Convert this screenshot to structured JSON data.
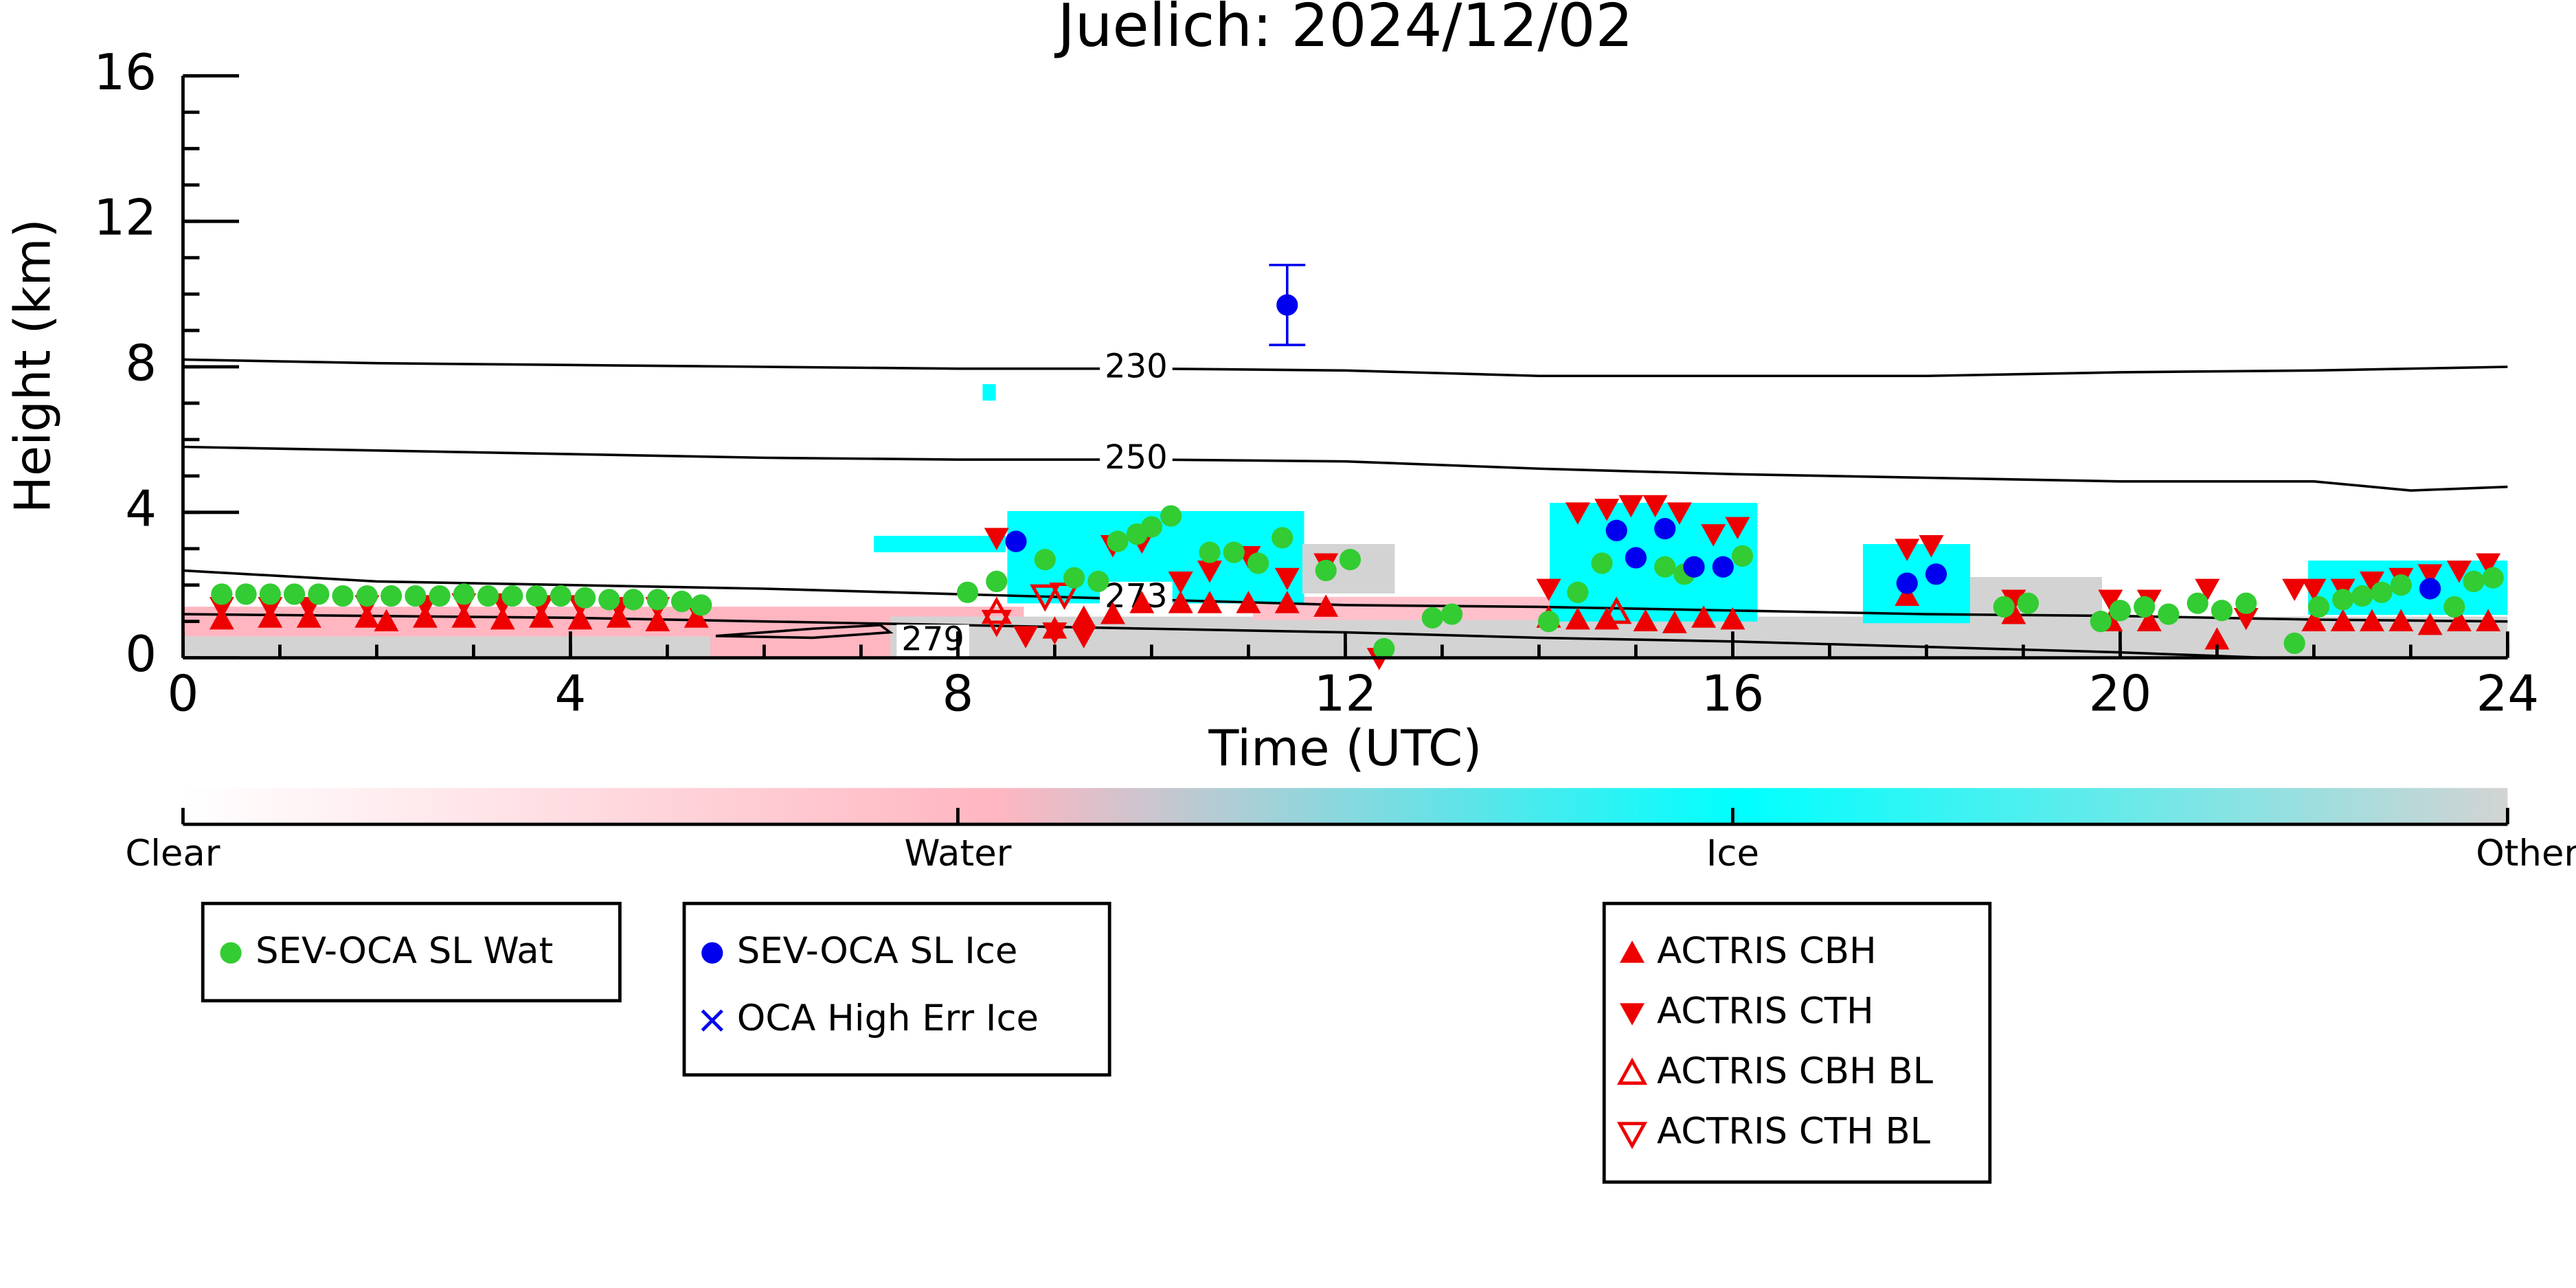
{
  "chart_data": {
    "type": "scatter",
    "title": "Juelich: 2024/12/02",
    "x_label": "Time (UTC)",
    "y_label": "Height (km)",
    "xlim": [
      0,
      24
    ],
    "ylim": [
      0,
      16
    ],
    "xticks": [
      0,
      4,
      8,
      12,
      16,
      20,
      24
    ],
    "yticks": [
      0,
      4,
      8,
      12,
      16
    ],
    "xminorticks": [
      0,
      1,
      2,
      3,
      4,
      5,
      6,
      7,
      8,
      9,
      10,
      11,
      12,
      13,
      14,
      15,
      16,
      17,
      18,
      19,
      20,
      21,
      22,
      23,
      24
    ],
    "yminorticks": [
      0,
      1,
      2,
      3,
      4,
      5,
      6,
      7,
      8,
      9,
      10,
      11,
      12,
      13,
      14,
      15,
      16
    ],
    "series": [
      {
        "name": "SEV-OCA SL Wat",
        "marker": "circle",
        "color": "#33cc33",
        "x": [
          0.4,
          0.65,
          0.9,
          1.15,
          1.4,
          1.65,
          1.9,
          2.15,
          2.4,
          2.65,
          2.9,
          3.15,
          3.4,
          3.65,
          3.9,
          4.15,
          4.4,
          4.65,
          4.9,
          5.15,
          5.35,
          8.1,
          8.4,
          8.9,
          9.2,
          9.45,
          9.65,
          9.85,
          10.0,
          10.2,
          10.6,
          10.85,
          11.1,
          11.35,
          11.8,
          12.05,
          12.4,
          12.9,
          13.1,
          14.1,
          14.4,
          14.65,
          15.3,
          15.5,
          16.1,
          18.8,
          19.05,
          19.8,
          20.0,
          20.25,
          20.5,
          20.8,
          21.05,
          21.3,
          21.8,
          22.05,
          22.3,
          22.5,
          22.7,
          22.9,
          23.2,
          23.45,
          23.65,
          23.85
        ],
        "values": [
          1.75,
          1.75,
          1.75,
          1.75,
          1.75,
          1.7,
          1.7,
          1.7,
          1.7,
          1.7,
          1.75,
          1.7,
          1.7,
          1.7,
          1.7,
          1.65,
          1.6,
          1.6,
          1.6,
          1.55,
          1.45,
          1.8,
          2.1,
          2.7,
          2.2,
          2.1,
          3.2,
          3.4,
          3.6,
          3.9,
          2.9,
          2.9,
          2.6,
          3.3,
          2.4,
          2.7,
          0.25,
          1.1,
          1.2,
          1.0,
          1.8,
          2.6,
          2.5,
          2.3,
          2.8,
          1.4,
          1.5,
          1.0,
          1.3,
          1.4,
          1.2,
          1.5,
          1.3,
          1.5,
          0.4,
          1.4,
          1.6,
          1.7,
          1.8,
          2.0,
          1.9,
          1.4,
          2.1,
          2.2
        ]
      },
      {
        "name": "SEV-OCA SL Ice",
        "marker": "circle",
        "color": "#0000ee",
        "x": [
          8.6,
          11.4,
          14.8,
          15.0,
          15.3,
          15.6,
          15.9,
          17.8,
          18.1,
          23.2
        ],
        "values": [
          3.2,
          9.7,
          3.5,
          2.75,
          3.55,
          2.5,
          2.5,
          2.05,
          2.3,
          1.9
        ],
        "errors": [
          null,
          1.1,
          null,
          null,
          null,
          null,
          null,
          null,
          null,
          null
        ]
      },
      {
        "name": "OCA High Err Ice",
        "marker": "x",
        "color": "#0000ee",
        "x": [],
        "values": []
      },
      {
        "name": "ACTRIS CBH",
        "marker": "tri-up",
        "color": "#ee0000",
        "x": [
          0.4,
          0.9,
          1.3,
          1.9,
          2.1,
          2.5,
          2.9,
          3.3,
          3.7,
          4.1,
          4.5,
          4.9,
          5.3,
          9.0,
          9.3,
          9.6,
          9.9,
          10.3,
          10.6,
          11.0,
          11.4,
          11.8,
          14.1,
          14.4,
          14.7,
          15.1,
          15.4,
          15.7,
          16.0,
          17.8,
          18.9,
          19.9,
          20.3,
          21.0,
          22.0,
          22.3,
          22.6,
          22.9,
          23.2,
          23.5,
          23.8
        ],
        "values": [
          1.05,
          1.1,
          1.1,
          1.1,
          1.0,
          1.1,
          1.1,
          1.05,
          1.1,
          1.05,
          1.1,
          1.0,
          1.1,
          0.8,
          1.1,
          1.2,
          1.5,
          1.5,
          1.5,
          1.5,
          1.5,
          1.4,
          1.1,
          1.05,
          1.05,
          1.0,
          0.95,
          1.1,
          1.05,
          1.7,
          1.2,
          1.0,
          1.0,
          0.5,
          1.0,
          1.0,
          1.0,
          1.0,
          0.9,
          1.0,
          1.0
        ]
      },
      {
        "name": "ACTRIS CTH",
        "marker": "tri-down",
        "color": "#ee0000",
        "x": [
          0.4,
          0.9,
          1.3,
          1.9,
          2.5,
          2.9,
          3.3,
          3.7,
          4.1,
          4.5,
          4.9,
          5.3,
          8.4,
          8.7,
          9.0,
          9.3,
          9.6,
          9.9,
          10.3,
          10.6,
          11.0,
          11.4,
          11.8,
          12.35,
          14.1,
          14.4,
          14.7,
          14.95,
          15.2,
          15.45,
          15.8,
          16.05,
          17.8,
          18.05,
          18.9,
          19.9,
          20.3,
          20.9,
          21.3,
          21.8,
          22.0,
          22.3,
          22.6,
          22.9,
          23.2,
          23.5,
          23.8
        ],
        "values": [
          1.4,
          1.4,
          1.4,
          1.45,
          1.45,
          1.5,
          1.5,
          1.45,
          1.45,
          1.4,
          1.4,
          1.35,
          3.3,
          0.6,
          0.7,
          0.6,
          3.1,
          3.2,
          2.1,
          2.4,
          2.8,
          2.2,
          2.6,
          0.0,
          1.9,
          4.0,
          4.1,
          4.2,
          4.2,
          4.0,
          3.4,
          3.6,
          3.0,
          3.1,
          1.6,
          1.6,
          1.6,
          1.9,
          1.1,
          1.9,
          1.9,
          1.9,
          2.1,
          2.2,
          2.3,
          2.4,
          2.6
        ]
      },
      {
        "name": "ACTRIS CBH BL",
        "marker": "tri-up-open",
        "color": "#ee0000",
        "x": [
          8.4,
          14.8
        ],
        "values": [
          1.25,
          1.25
        ]
      },
      {
        "name": "ACTRIS CTH BL",
        "marker": "tri-down-open",
        "color": "#ee0000",
        "x": [
          8.4,
          8.9,
          9.1
        ],
        "values": [
          1.0,
          1.7,
          1.75
        ]
      }
    ],
    "contours": [
      {
        "name": "230",
        "x": [
          0,
          2,
          4,
          6,
          8,
          10,
          12,
          14,
          16,
          18,
          20,
          22,
          24
        ],
        "values": [
          8.2,
          8.1,
          8.05,
          8.0,
          7.95,
          7.95,
          7.9,
          7.75,
          7.75,
          7.75,
          7.85,
          7.9,
          8.0
        ]
      },
      {
        "name": "250",
        "x": [
          0,
          2,
          4,
          6,
          8,
          10,
          12,
          14,
          16,
          18,
          20,
          22,
          23,
          24
        ],
        "values": [
          5.8,
          5.7,
          5.6,
          5.5,
          5.45,
          5.45,
          5.4,
          5.2,
          5.05,
          4.95,
          4.85,
          4.85,
          4.6,
          4.7
        ]
      },
      {
        "name": "273",
        "x": [
          0,
          2,
          4,
          6,
          8,
          10,
          12,
          14,
          16,
          18,
          20,
          22,
          24
        ],
        "values": [
          2.4,
          2.1,
          2.0,
          1.9,
          1.75,
          1.6,
          1.45,
          1.4,
          1.3,
          1.2,
          1.15,
          1.05,
          1.0
        ]
      },
      {
        "x": [
          0,
          2,
          4,
          6,
          8,
          10,
          12,
          14,
          16,
          18,
          20,
          21.5,
          24
        ],
        "values": [
          1.2,
          1.15,
          1.1,
          1.0,
          0.9,
          0.8,
          0.7,
          0.55,
          0.45,
          0.3,
          0.15,
          0.0,
          0.0
        ]
      },
      {
        "name": "279",
        "x": [
          5.5,
          6.5,
          7.2,
          7.3,
          6.5,
          5.5
        ],
        "values": [
          0.6,
          0.8,
          0.9,
          0.7,
          0.55,
          0.6
        ]
      }
    ],
    "colorbar": {
      "labels": [
        "Clear",
        "Water",
        "Ice",
        "Other"
      ]
    }
  }
}
